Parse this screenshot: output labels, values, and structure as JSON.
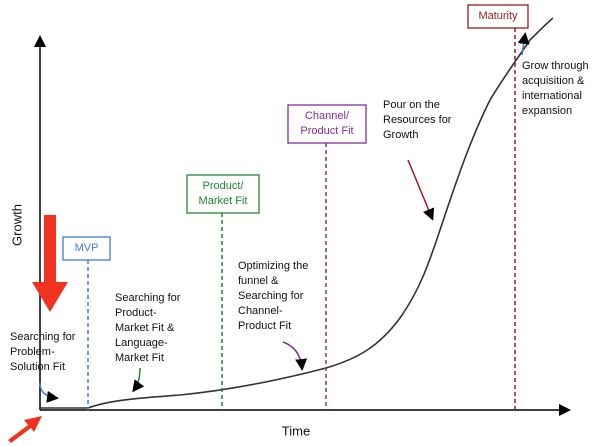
{
  "axes": {
    "y_label": "Growth",
    "x_label": "Time"
  },
  "stages": [
    {
      "label": [
        "MVP"
      ],
      "color": "#3b7de0"
    },
    {
      "label": [
        "Product/",
        "Market Fit"
      ],
      "color": "#1f8a2a"
    },
    {
      "label": [
        "Channel/",
        "Product Fit"
      ],
      "color": "#8a2b9a"
    },
    {
      "label": [
        "Maturity"
      ],
      "color": "#9a1d1d"
    }
  ],
  "annotations": [
    {
      "lines": [
        "Searching for",
        "Problem-",
        "Solution Fit"
      ]
    },
    {
      "lines": [
        "Searching for",
        "Product-",
        "Market Fit &",
        "Language-",
        "Market Fit"
      ]
    },
    {
      "lines": [
        "Optimizing the",
        "funnel &",
        "Searching for",
        "Channel-",
        "Product Fit"
      ]
    },
    {
      "lines": [
        "Pour on the",
        "Resources for",
        "Growth"
      ]
    },
    {
      "lines": [
        "Grow through",
        "acquisition &",
        "international",
        "expansion"
      ]
    }
  ]
}
